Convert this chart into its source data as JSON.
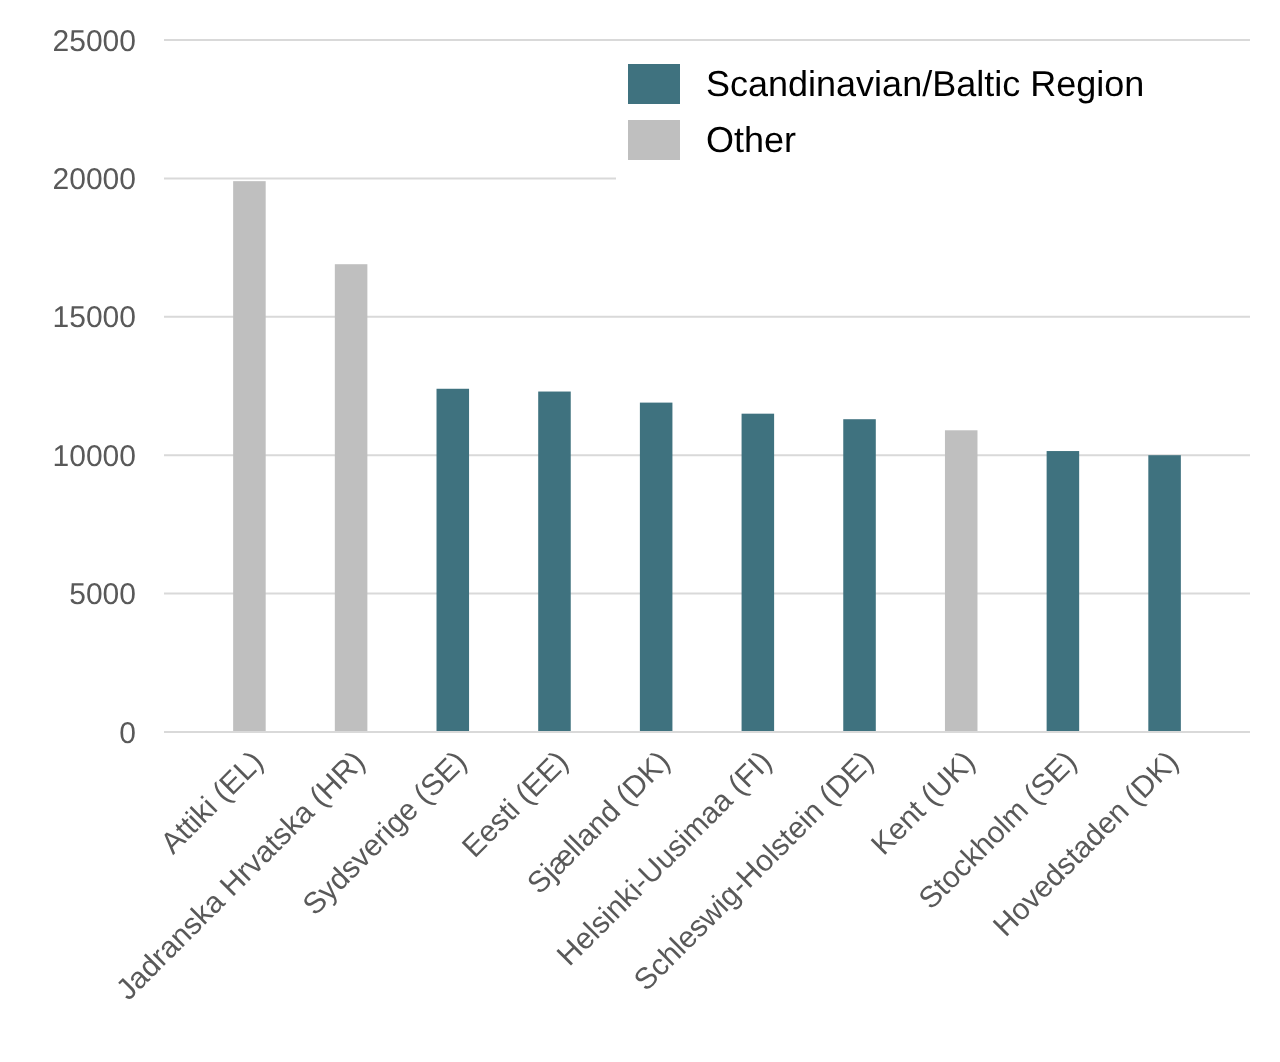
{
  "chart_data": {
    "type": "bar",
    "categories": [
      "Attiki (EL)",
      "Jadranska Hrvatska (HR)",
      "Sydsverige (SE)",
      "Eesti (EE)",
      "Sjælland (DK)",
      "Helsinki-Uusimaa (FI)",
      "Schleswig-Holstein (DE)",
      "Kent (UK)",
      "Stockholm (SE)",
      "Hovedstaden (DK)"
    ],
    "series": [
      {
        "name": "Scandinavian/Baltic Region",
        "color": "#3f727f",
        "values": [
          null,
          null,
          12400,
          12300,
          11900,
          11500,
          11300,
          null,
          10150,
          10000
        ]
      },
      {
        "name": "Other",
        "color": "#bfbfbf",
        "values": [
          19900,
          16900,
          null,
          null,
          null,
          null,
          null,
          10900,
          null,
          null
        ]
      }
    ],
    "ylim": [
      0,
      25000
    ],
    "yticks": [
      0,
      5000,
      10000,
      15000,
      20000,
      25000
    ],
    "grid": "y",
    "legend": "top right"
  }
}
